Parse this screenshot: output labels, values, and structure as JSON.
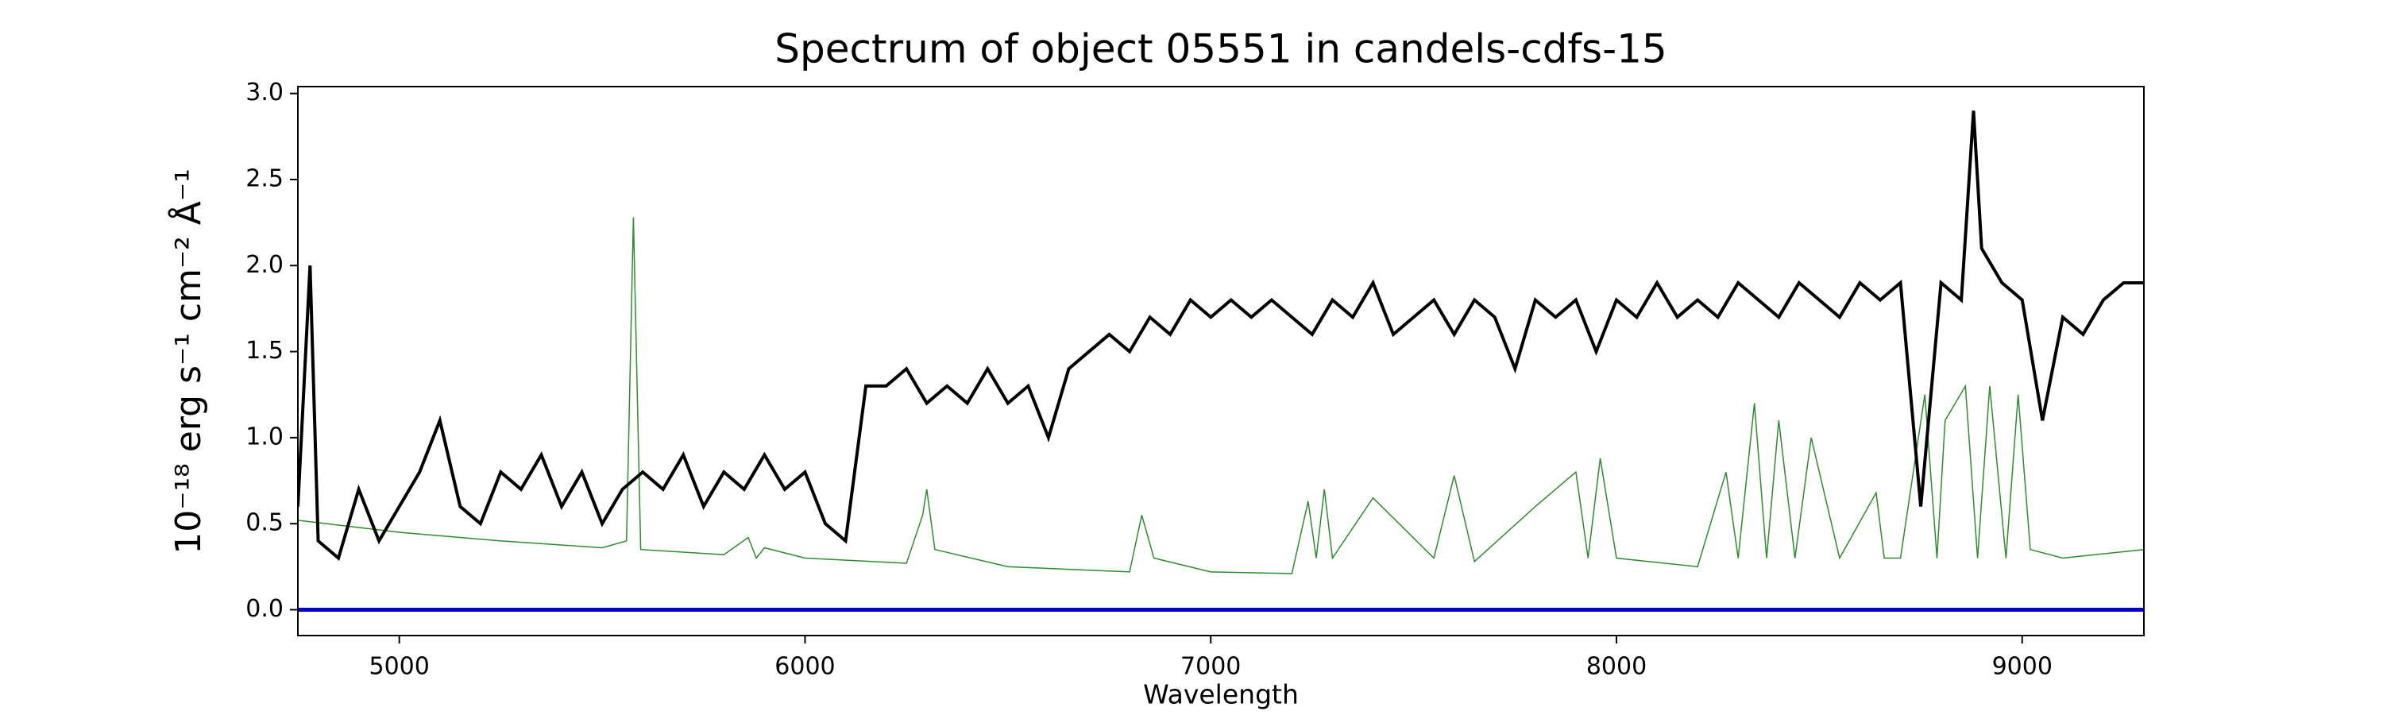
{
  "chart_data": {
    "type": "line",
    "title": "Spectrum of object 05551 in candels-cdfs-15",
    "xlabel": "Wavelength",
    "ylabel": "10⁻¹⁸ erg s⁻¹ cm⁻² Å⁻¹",
    "xlim": [
      4750,
      9300
    ],
    "ylim": [
      -0.15,
      3.04
    ],
    "xticks": [
      5000,
      6000,
      7000,
      8000,
      9000
    ],
    "yticks": [
      {
        "value": 0,
        "label": "0.0"
      },
      0.5,
      {
        "value": 1,
        "label": "1.0"
      },
      1.5,
      {
        "value": 2,
        "label": "2.0"
      },
      2.5,
      {
        "value": 3,
        "label": "3.0"
      }
    ],
    "series": [
      {
        "color": "#000000",
        "x": [
          4750,
          4780,
          4800,
          4850,
          4900,
          4950,
          5000,
          5050,
          5100,
          5150,
          5200,
          5250,
          5300,
          5350,
          5400,
          5450,
          5500,
          5550,
          5600,
          5650,
          5700,
          5750,
          5800,
          5850,
          5900,
          5950,
          6000,
          6050,
          6100,
          6150,
          6200,
          6250,
          6300,
          6350,
          6400,
          6450,
          6500,
          6550,
          6600,
          6650,
          6700,
          6750,
          6800,
          6850,
          6900,
          6950,
          7000,
          7050,
          7100,
          7150,
          7200,
          7250,
          7300,
          7350,
          7400,
          7450,
          7500,
          7550,
          7600,
          7650,
          7700,
          7750,
          7800,
          7850,
          7900,
          7950,
          8000,
          8050,
          8100,
          8150,
          8200,
          8250,
          8300,
          8350,
          8400,
          8450,
          8500,
          8550,
          8600,
          8650,
          8700,
          8750,
          8800,
          8850,
          8880,
          8900,
          8950,
          9000,
          9050,
          9100,
          9150,
          9200,
          9250,
          9300
        ],
        "values": [
          0.6,
          2.0,
          0.4,
          0.3,
          0.7,
          0.4,
          0.6,
          0.8,
          1.1,
          0.6,
          0.5,
          0.8,
          0.7,
          0.9,
          0.6,
          0.8,
          0.5,
          0.7,
          0.8,
          0.7,
          0.9,
          0.6,
          0.8,
          0.7,
          0.9,
          0.7,
          0.8,
          0.5,
          0.4,
          1.3,
          1.3,
          1.4,
          1.2,
          1.3,
          1.2,
          1.4,
          1.2,
          1.3,
          1.0,
          1.4,
          1.5,
          1.6,
          1.5,
          1.7,
          1.6,
          1.8,
          1.7,
          1.8,
          1.7,
          1.8,
          1.7,
          1.6,
          1.8,
          1.7,
          1.9,
          1.6,
          1.7,
          1.8,
          1.6,
          1.8,
          1.7,
          1.4,
          1.8,
          1.7,
          1.8,
          1.5,
          1.8,
          1.7,
          1.9,
          1.7,
          1.8,
          1.7,
          1.9,
          1.8,
          1.7,
          1.9,
          1.8,
          1.7,
          1.9,
          1.8,
          1.9,
          0.6,
          1.9,
          1.8,
          2.9,
          2.1,
          1.9,
          1.8,
          1.1,
          1.7,
          1.6,
          1.8,
          1.9,
          1.9
        ]
      },
      {
        "color": "#2e8b2e",
        "x": [
          4750,
          5000,
          5250,
          5500,
          5560,
          5577,
          5595,
          5800,
          5860,
          5880,
          5900,
          6000,
          6250,
          6290,
          6300,
          6320,
          6500,
          6800,
          6830,
          6860,
          7000,
          7200,
          7240,
          7260,
          7280,
          7300,
          7400,
          7550,
          7600,
          7650,
          7800,
          7900,
          7930,
          7960,
          8000,
          8200,
          8270,
          8300,
          8340,
          8370,
          8400,
          8440,
          8480,
          8550,
          8640,
          8660,
          8700,
          8760,
          8790,
          8810,
          8860,
          8890,
          8920,
          8960,
          8990,
          9020,
          9100,
          9300
        ],
        "values": [
          0.52,
          0.45,
          0.4,
          0.36,
          0.4,
          2.28,
          0.35,
          0.32,
          0.42,
          0.3,
          0.36,
          0.3,
          0.27,
          0.55,
          0.7,
          0.35,
          0.25,
          0.22,
          0.55,
          0.3,
          0.22,
          0.21,
          0.63,
          0.3,
          0.7,
          0.3,
          0.65,
          0.3,
          0.78,
          0.28,
          0.6,
          0.8,
          0.3,
          0.88,
          0.3,
          0.25,
          0.8,
          0.3,
          1.2,
          0.3,
          1.1,
          0.3,
          1.0,
          0.3,
          0.68,
          0.3,
          0.3,
          1.25,
          0.3,
          1.1,
          1.3,
          0.3,
          1.3,
          0.3,
          1.25,
          0.35,
          0.3,
          0.35
        ]
      },
      {
        "color": "#0000cc",
        "x": [
          4750,
          9300
        ],
        "values": [
          0,
          0
        ]
      }
    ]
  }
}
